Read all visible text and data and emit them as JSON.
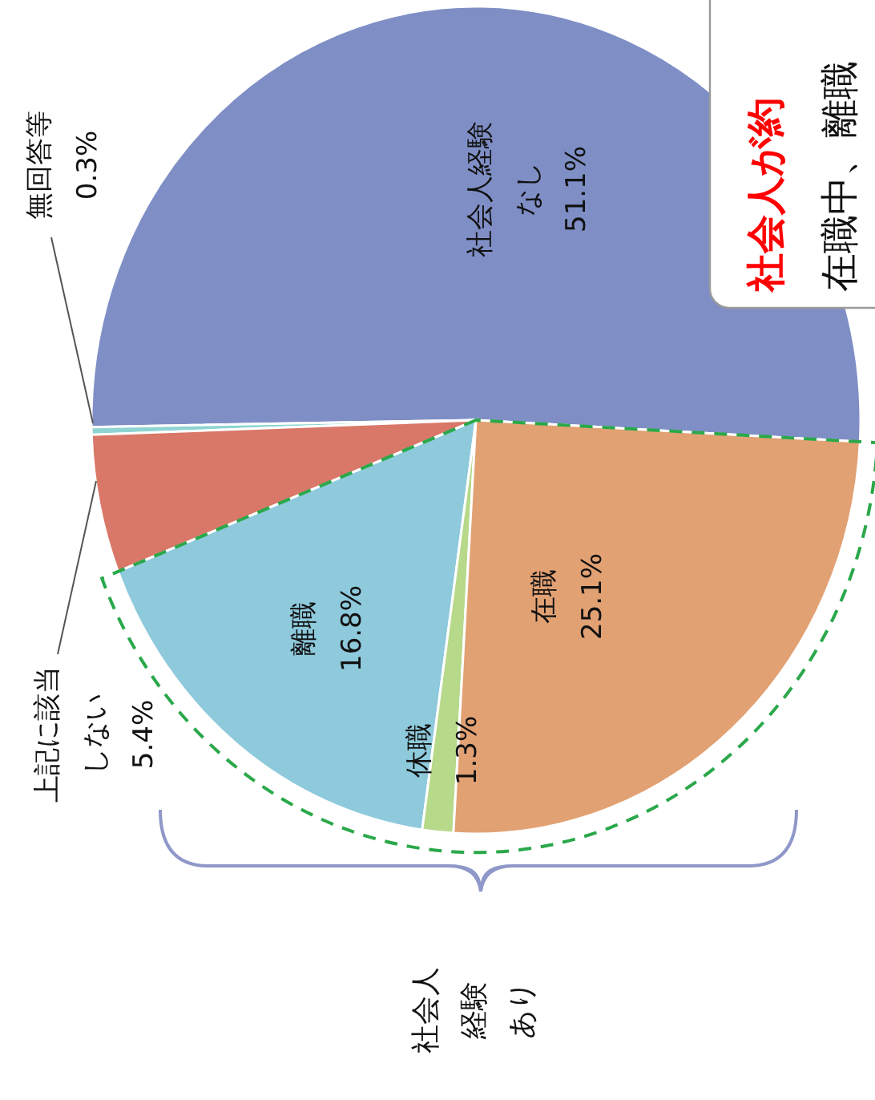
{
  "chart_data": {
    "type": "pie",
    "categories": [
      "社会人経験なし",
      "無回答等",
      "上記に該当しない",
      "離職",
      "休職",
      "在職"
    ],
    "values": [
      51.1,
      0.3,
      5.4,
      16.8,
      1.3,
      25.1
    ],
    "value_labels": [
      "51.1%",
      "0.3%",
      "5.4%",
      "16.8%",
      "1.3%",
      "25.1%"
    ],
    "colors": [
      "#7f8fc6",
      "#8fd4d2",
      "#d97868",
      "#8ec9dc",
      "#b6d98a",
      "#e2a173"
    ],
    "legend": false,
    "annotations": [
      "社会人経験あり",
      "社会人が約",
      "在職中、離職"
    ]
  }
}
